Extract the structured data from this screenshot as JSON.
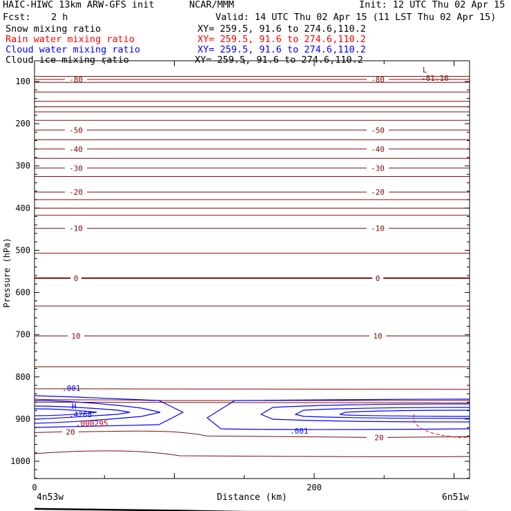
{
  "header": {
    "model": "HAIC-HIWC 13km ARW-GFS init",
    "org": "NCAR/MMM",
    "init": "Init: 12 UTC Thu 02 Apr 15",
    "fcst_label": "Fcst:",
    "fcst_value": "2 h",
    "valid": "Valid: 14 UTC Thu 02 Apr 15 (11 LST Thu 02 Apr 15)"
  },
  "fields": [
    {
      "name": "Snow mixing ratio",
      "xy": "XY= 259.5, 91.6 to 274.6,110.2",
      "color": "#000000"
    },
    {
      "name": "Rain water mixing ratio",
      "xy": "XY= 259.5, 91.6 to 274.6,110.2",
      "color": "#ff0000"
    },
    {
      "name": "Cloud water mixing ratio",
      "xy": "XY= 259.5, 91.6 to 274.6,110.2",
      "color": "#0000ff"
    },
    {
      "name": "Cloud ice mixing ratio",
      "xy": "XY= 259.5, 91.6 to 274.6,110.2",
      "color": "#000000"
    }
  ],
  "chart_data": {
    "type": "cross-section contour",
    "xlabel": "Distance (km)",
    "ylabel": "Pressure (hPa)",
    "xlim": [
      0,
      310
    ],
    "ylim": [
      1050,
      80
    ],
    "x_ticks": [
      "0",
      "200"
    ],
    "y_ticks": [
      "100",
      "200",
      "300",
      "400",
      "500",
      "600",
      "700",
      "800",
      "900",
      "1000"
    ],
    "x_start_label": "4n53w",
    "x_end_label": "6n51w",
    "colors": {
      "temperature": "#7b0a0a",
      "cloud_water": "#0000ff",
      "rain": "#cc0000",
      "ground": "#000000"
    },
    "temperature_isotherms": {
      "labeled": [
        {
          "value": "-80",
          "p": 95
        },
        {
          "value": "-50",
          "p": 215
        },
        {
          "value": "-40",
          "p": 260
        },
        {
          "value": "-30",
          "p": 305
        },
        {
          "value": "-20",
          "p": 362
        },
        {
          "value": "-10",
          "p": 448
        },
        {
          "value": "0",
          "p": 566
        },
        {
          "value": "10",
          "p": 703
        },
        {
          "value": "20",
          "p": 940
        }
      ],
      "unlabeled_p": [
        88,
        102,
        125,
        147,
        160,
        172,
        192,
        238,
        282,
        325,
        380,
        400,
        417,
        507,
        632,
        776,
        828,
        860
      ]
    },
    "labels": {
      "low": "L",
      "low_value": "-81.16",
      "high": "H",
      "high_value": ".4268",
      "cloud_contour": ".001",
      "rain_value": ".000295"
    },
    "terrain_hPa": [
      [
        0,
        1008
      ],
      [
        50,
        1010
      ],
      [
        100,
        1012
      ],
      [
        150,
        1015
      ],
      [
        200,
        1015
      ],
      [
        250,
        1015
      ],
      [
        310,
        1015
      ]
    ]
  }
}
